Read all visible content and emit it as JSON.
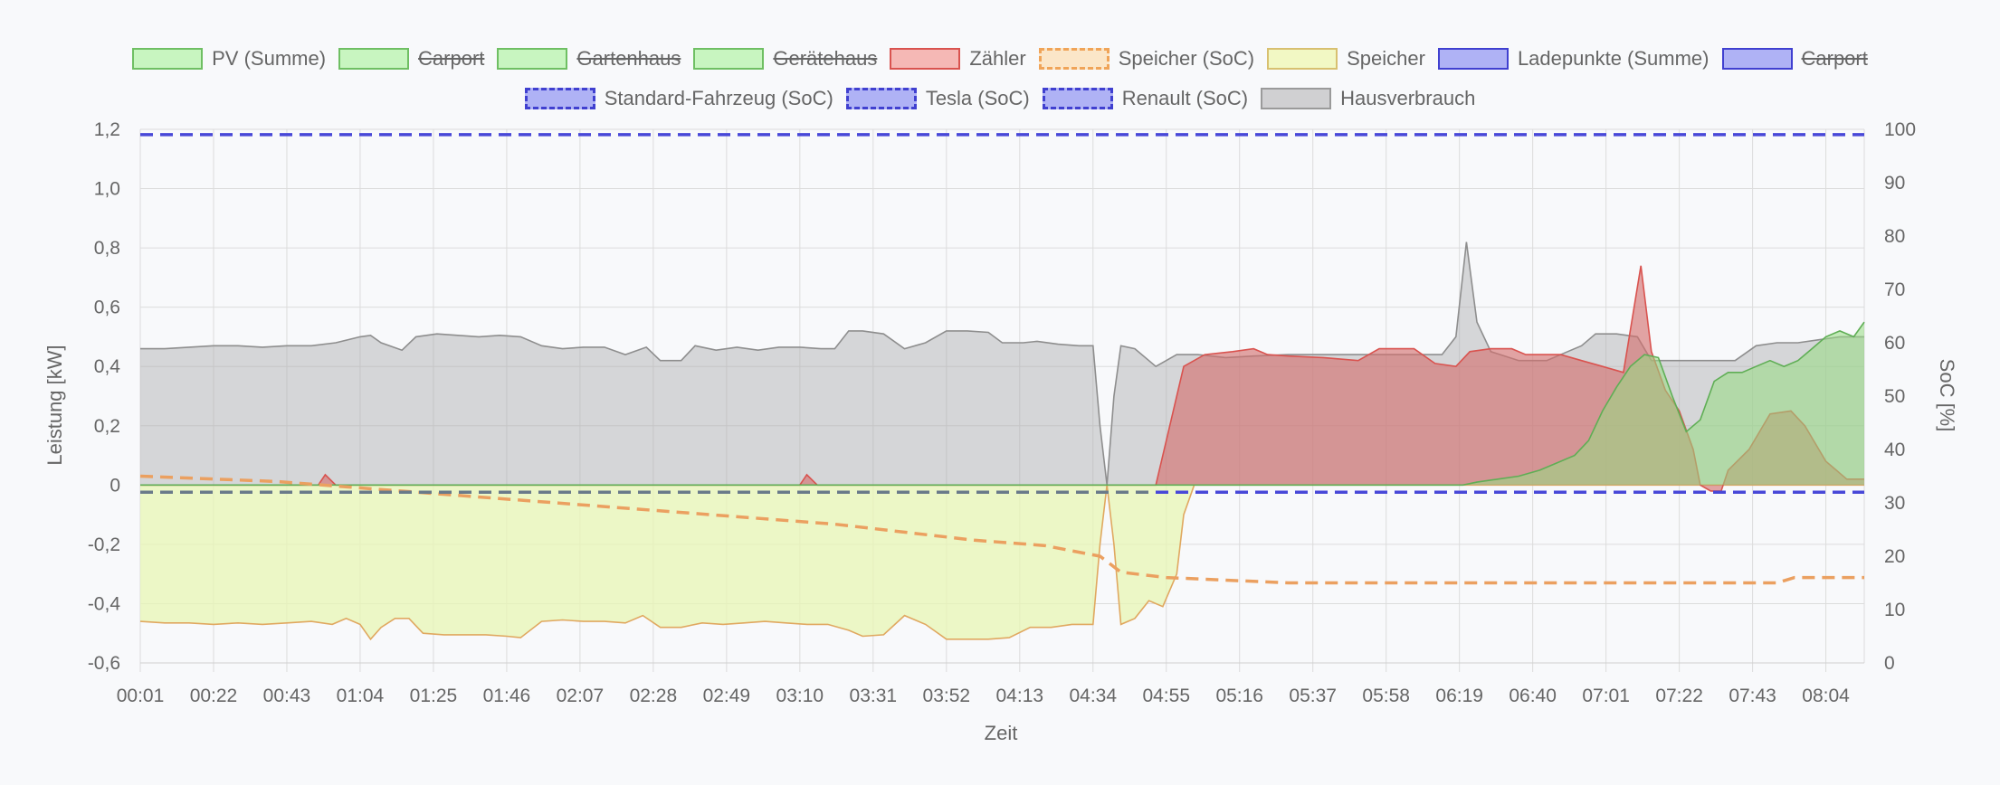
{
  "legend": {
    "row1": [
      {
        "label": "PV (Summe)",
        "fill": "#c8f5c0",
        "stroke": "#6fbf63",
        "dashed": false,
        "hidden": false
      },
      {
        "label": "Carport",
        "fill": "#c8f5c0",
        "stroke": "#6fbf63",
        "dashed": false,
        "hidden": true
      },
      {
        "label": "Gartenhaus",
        "fill": "#c8f5c0",
        "stroke": "#6fbf63",
        "dashed": false,
        "hidden": true
      },
      {
        "label": "Gerätehaus",
        "fill": "#c8f5c0",
        "stroke": "#6fbf63",
        "dashed": false,
        "hidden": true
      },
      {
        "label": "Zähler",
        "fill": "#f5b8b5",
        "stroke": "#d9534f",
        "dashed": false,
        "hidden": false
      },
      {
        "label": "Speicher (SoC)",
        "fill": "#fbe6c8",
        "stroke": "#f0a458",
        "dashed": true,
        "hidden": false
      },
      {
        "label": "Speicher",
        "fill": "#f2f8c4",
        "stroke": "#d8c070",
        "dashed": false,
        "hidden": false
      },
      {
        "label": "Ladepunkte (Summe)",
        "fill": "#afb2f5",
        "stroke": "#4040d0",
        "dashed": false,
        "hidden": false
      },
      {
        "label": "Carport",
        "fill": "#afb2f5",
        "stroke": "#4040d0",
        "dashed": false,
        "hidden": true
      }
    ],
    "row2": [
      {
        "label": "Standard-Fahrzeug (SoC)",
        "fill": "#afb2f5",
        "stroke": "#4040d0",
        "dashed": true,
        "hidden": false
      },
      {
        "label": "Tesla (SoC)",
        "fill": "#afb2f5",
        "stroke": "#4040d0",
        "dashed": true,
        "hidden": false
      },
      {
        "label": "Renault (SoC)",
        "fill": "#afb2f5",
        "stroke": "#4040d0",
        "dashed": true,
        "hidden": false
      },
      {
        "label": "Hausverbrauch",
        "fill": "#d0d0d2",
        "stroke": "#9a9a9a",
        "dashed": false,
        "hidden": false
      }
    ]
  },
  "chart_data": {
    "type": "area",
    "xlabel": "Zeit",
    "ylabel": "Leistung [kW]",
    "y2label": "SoC [%]",
    "ylim": [
      -0.6,
      1.2
    ],
    "y2lim": [
      0,
      100
    ],
    "yticks": [
      "1,2",
      "1,0",
      "0,8",
      "0,6",
      "0,4",
      "0,2",
      "0",
      "-0,2",
      "-0,4",
      "-0,6"
    ],
    "y2ticks": [
      "100",
      "90",
      "80",
      "70",
      "60",
      "50",
      "40",
      "30",
      "20",
      "10",
      "0"
    ],
    "xticks": [
      "00:01",
      "00:22",
      "00:43",
      "01:04",
      "01:25",
      "01:46",
      "02:07",
      "02:28",
      "02:49",
      "03:10",
      "03:31",
      "03:52",
      "04:13",
      "04:34",
      "04:55",
      "05:16",
      "05:37",
      "05:58",
      "06:19",
      "06:40",
      "07:01",
      "07:22",
      "07:43",
      "08:04"
    ],
    "xrange_minutes": [
      1,
      495
    ],
    "grid": true,
    "legend_position": "top",
    "series": [
      {
        "name": "Hausverbrauch",
        "axis": "left",
        "fill": "rgba(170,170,172,0.45)",
        "stroke": "#8e8e8e",
        "points": [
          [
            1,
            0.46
          ],
          [
            8,
            0.46
          ],
          [
            15,
            0.465
          ],
          [
            22,
            0.47
          ],
          [
            29,
            0.47
          ],
          [
            36,
            0.465
          ],
          [
            43,
            0.47
          ],
          [
            50,
            0.47
          ],
          [
            57,
            0.48
          ],
          [
            64,
            0.5
          ],
          [
            67,
            0.505
          ],
          [
            70,
            0.48
          ],
          [
            76,
            0.455
          ],
          [
            80,
            0.5
          ],
          [
            86,
            0.51
          ],
          [
            92,
            0.505
          ],
          [
            98,
            0.5
          ],
          [
            104,
            0.505
          ],
          [
            110,
            0.5
          ],
          [
            116,
            0.47
          ],
          [
            122,
            0.46
          ],
          [
            128,
            0.465
          ],
          [
            134,
            0.465
          ],
          [
            140,
            0.44
          ],
          [
            146,
            0.465
          ],
          [
            150,
            0.42
          ],
          [
            156,
            0.42
          ],
          [
            160,
            0.47
          ],
          [
            166,
            0.455
          ],
          [
            172,
            0.465
          ],
          [
            178,
            0.455
          ],
          [
            184,
            0.465
          ],
          [
            190,
            0.465
          ],
          [
            196,
            0.46
          ],
          [
            200,
            0.46
          ],
          [
            204,
            0.52
          ],
          [
            208,
            0.52
          ],
          [
            214,
            0.51
          ],
          [
            220,
            0.46
          ],
          [
            226,
            0.48
          ],
          [
            232,
            0.52
          ],
          [
            238,
            0.52
          ],
          [
            244,
            0.515
          ],
          [
            248,
            0.48
          ],
          [
            254,
            0.48
          ],
          [
            258,
            0.485
          ],
          [
            264,
            0.475
          ],
          [
            270,
            0.47
          ],
          [
            274,
            0.47
          ],
          [
            276,
            0.2
          ],
          [
            278,
            0.0
          ],
          [
            280,
            0.3
          ],
          [
            282,
            0.47
          ],
          [
            286,
            0.46
          ],
          [
            290,
            0.42
          ],
          [
            292,
            0.4
          ],
          [
            298,
            0.44
          ],
          [
            304,
            0.44
          ],
          [
            312,
            0.43
          ],
          [
            320,
            0.435
          ],
          [
            330,
            0.44
          ],
          [
            340,
            0.44
          ],
          [
            350,
            0.44
          ],
          [
            360,
            0.44
          ],
          [
            368,
            0.44
          ],
          [
            374,
            0.44
          ],
          [
            378,
            0.5
          ],
          [
            381,
            0.82
          ],
          [
            384,
            0.55
          ],
          [
            388,
            0.45
          ],
          [
            396,
            0.42
          ],
          [
            404,
            0.42
          ],
          [
            410,
            0.45
          ],
          [
            414,
            0.47
          ],
          [
            418,
            0.51
          ],
          [
            424,
            0.51
          ],
          [
            430,
            0.5
          ],
          [
            434,
            0.42
          ],
          [
            440,
            0.42
          ],
          [
            446,
            0.42
          ],
          [
            452,
            0.42
          ],
          [
            458,
            0.42
          ],
          [
            464,
            0.47
          ],
          [
            470,
            0.48
          ],
          [
            476,
            0.48
          ],
          [
            482,
            0.49
          ],
          [
            488,
            0.5
          ],
          [
            495,
            0.5
          ]
        ]
      },
      {
        "name": "Speicher",
        "axis": "left",
        "fill": "rgba(232,245,180,0.75)",
        "stroke": "#e0a860",
        "points": [
          [
            1,
            -0.46
          ],
          [
            8,
            -0.465
          ],
          [
            15,
            -0.465
          ],
          [
            22,
            -0.47
          ],
          [
            29,
            -0.465
          ],
          [
            36,
            -0.47
          ],
          [
            43,
            -0.465
          ],
          [
            50,
            -0.46
          ],
          [
            56,
            -0.47
          ],
          [
            60,
            -0.45
          ],
          [
            64,
            -0.47
          ],
          [
            67,
            -0.52
          ],
          [
            70,
            -0.48
          ],
          [
            74,
            -0.45
          ],
          [
            78,
            -0.45
          ],
          [
            82,
            -0.5
          ],
          [
            88,
            -0.505
          ],
          [
            94,
            -0.505
          ],
          [
            100,
            -0.505
          ],
          [
            106,
            -0.51
          ],
          [
            110,
            -0.515
          ],
          [
            116,
            -0.46
          ],
          [
            122,
            -0.455
          ],
          [
            128,
            -0.46
          ],
          [
            134,
            -0.46
          ],
          [
            140,
            -0.465
          ],
          [
            145,
            -0.44
          ],
          [
            150,
            -0.48
          ],
          [
            156,
            -0.48
          ],
          [
            162,
            -0.465
          ],
          [
            168,
            -0.47
          ],
          [
            174,
            -0.465
          ],
          [
            180,
            -0.46
          ],
          [
            186,
            -0.465
          ],
          [
            192,
            -0.47
          ],
          [
            198,
            -0.47
          ],
          [
            204,
            -0.49
          ],
          [
            208,
            -0.51
          ],
          [
            214,
            -0.505
          ],
          [
            220,
            -0.44
          ],
          [
            226,
            -0.47
          ],
          [
            232,
            -0.52
          ],
          [
            238,
            -0.52
          ],
          [
            244,
            -0.52
          ],
          [
            250,
            -0.515
          ],
          [
            256,
            -0.48
          ],
          [
            262,
            -0.48
          ],
          [
            268,
            -0.47
          ],
          [
            274,
            -0.47
          ],
          [
            276,
            -0.2
          ],
          [
            278,
            0.0
          ],
          [
            280,
            -0.2
          ],
          [
            282,
            -0.47
          ],
          [
            286,
            -0.45
          ],
          [
            290,
            -0.39
          ],
          [
            294,
            -0.41
          ],
          [
            298,
            -0.3
          ],
          [
            300,
            -0.1
          ],
          [
            303,
            0.0
          ],
          [
            495,
            0.0
          ]
        ]
      },
      {
        "name": "Zähler",
        "axis": "left",
        "fill": "rgba(212,110,108,0.62)",
        "stroke": "#d9534f",
        "points": [
          [
            1,
            0
          ],
          [
            48,
            0
          ],
          [
            52,
            0.0
          ],
          [
            54,
            0.035
          ],
          [
            57,
            0.0
          ],
          [
            190,
            0
          ],
          [
            192,
            0.035
          ],
          [
            195,
            0.0
          ],
          [
            286,
            0
          ],
          [
            292,
            0.0
          ],
          [
            296,
            0.2
          ],
          [
            300,
            0.4
          ],
          [
            306,
            0.44
          ],
          [
            314,
            0.45
          ],
          [
            320,
            0.46
          ],
          [
            324,
            0.44
          ],
          [
            330,
            0.435
          ],
          [
            340,
            0.43
          ],
          [
            350,
            0.42
          ],
          [
            356,
            0.46
          ],
          [
            366,
            0.46
          ],
          [
            372,
            0.41
          ],
          [
            378,
            0.4
          ],
          [
            382,
            0.45
          ],
          [
            388,
            0.46
          ],
          [
            394,
            0.46
          ],
          [
            398,
            0.44
          ],
          [
            408,
            0.44
          ],
          [
            414,
            0.42
          ],
          [
            420,
            0.4
          ],
          [
            426,
            0.38
          ],
          [
            431,
            0.74
          ],
          [
            434,
            0.45
          ],
          [
            438,
            0.32
          ],
          [
            442,
            0.25
          ],
          [
            446,
            0.12
          ],
          [
            448,
            0.0
          ],
          [
            451,
            -0.02
          ],
          [
            454,
            -0.02
          ],
          [
            456,
            0.05
          ],
          [
            462,
            0.12
          ],
          [
            468,
            0.24
          ],
          [
            474,
            0.25
          ],
          [
            478,
            0.2
          ],
          [
            484,
            0.08
          ],
          [
            490,
            0.02
          ],
          [
            495,
            0.02
          ]
        ]
      },
      {
        "name": "PV (Summe)",
        "axis": "left",
        "fill": "rgba(150,220,130,0.55)",
        "stroke": "#5fae55",
        "points": [
          [
            1,
            0
          ],
          [
            380,
            0
          ],
          [
            384,
            0.01
          ],
          [
            390,
            0.02
          ],
          [
            396,
            0.03
          ],
          [
            402,
            0.05
          ],
          [
            408,
            0.08
          ],
          [
            412,
            0.1
          ],
          [
            416,
            0.15
          ],
          [
            420,
            0.25
          ],
          [
            424,
            0.33
          ],
          [
            428,
            0.4
          ],
          [
            432,
            0.44
          ],
          [
            436,
            0.43
          ],
          [
            440,
            0.3
          ],
          [
            444,
            0.18
          ],
          [
            448,
            0.22
          ],
          [
            452,
            0.35
          ],
          [
            456,
            0.38
          ],
          [
            460,
            0.38
          ],
          [
            464,
            0.4
          ],
          [
            468,
            0.42
          ],
          [
            472,
            0.4
          ],
          [
            476,
            0.42
          ],
          [
            480,
            0.46
          ],
          [
            484,
            0.5
          ],
          [
            488,
            0.52
          ],
          [
            492,
            0.5
          ],
          [
            495,
            0.55
          ]
        ]
      }
    ],
    "soc_series": [
      {
        "name": "Speicher (SoC)",
        "axis": "right",
        "stroke": "#eba060",
        "dashed": true,
        "points": [
          [
            1,
            35
          ],
          [
            40,
            34
          ],
          [
            80,
            32
          ],
          [
            120,
            30
          ],
          [
            160,
            28
          ],
          [
            200,
            26
          ],
          [
            240,
            23
          ],
          [
            260,
            22
          ],
          [
            276,
            20
          ],
          [
            282,
            17
          ],
          [
            295,
            16
          ],
          [
            330,
            15
          ],
          [
            400,
            15
          ],
          [
            470,
            15
          ],
          [
            475,
            16
          ],
          [
            495,
            16
          ]
        ]
      },
      {
        "name": "Standard-Fahrzeug (SoC)",
        "axis": "right",
        "stroke": "#4848d8",
        "dashed": true,
        "points": [
          [
            1,
            99
          ],
          [
            495,
            99
          ]
        ]
      },
      {
        "name": "Tesla (SoC)",
        "axis": "right",
        "stroke": "#4848d8",
        "dashed": true,
        "points": [
          [
            1,
            32
          ],
          [
            495,
            32
          ]
        ]
      },
      {
        "name": "Renault (SoC)",
        "axis": "right",
        "stroke": "#6a7a8a",
        "dashed": true,
        "points": [
          [
            1,
            32
          ],
          [
            290,
            32
          ]
        ]
      }
    ]
  }
}
